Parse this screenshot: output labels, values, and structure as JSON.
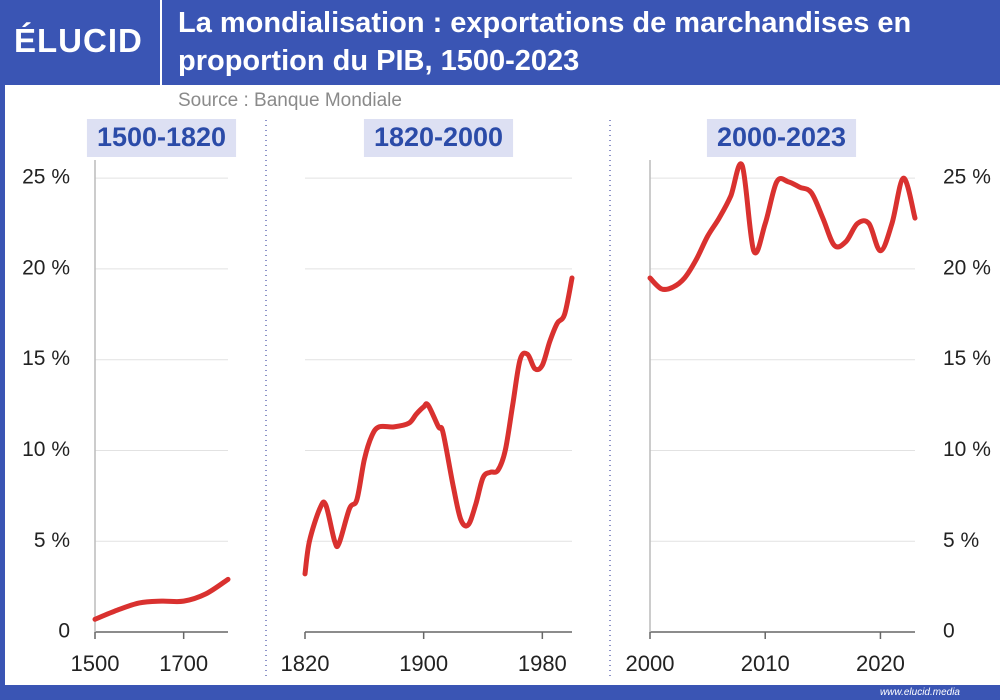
{
  "header": {
    "logo": "ÉLUCID",
    "title": "La mondialisation : exportations de marchandises en proportion du PIB, 1500-2023",
    "source": "Source : Banque Mondiale"
  },
  "footer": {
    "url": "www.elucid.media"
  },
  "chart_data": [
    {
      "type": "line",
      "title": "1500-1820",
      "color": "#d9312f",
      "grid": true,
      "yaxis": "left",
      "x": [
        1500,
        1550,
        1600,
        1650,
        1700,
        1750,
        1800
      ],
      "values": [
        0.7,
        1.2,
        1.6,
        1.7,
        1.7,
        2.1,
        2.9
      ],
      "xlim": [
        1500,
        1800
      ],
      "xticks": [
        1500,
        1700
      ],
      "ylim": [
        0,
        26
      ],
      "yticks": [
        0,
        {
          "value": 5,
          "label": "5 %"
        },
        {
          "value": 10,
          "label": "10 %"
        },
        {
          "value": 15,
          "label": "15 %"
        },
        {
          "value": 20,
          "label": "20 %"
        },
        {
          "value": 25,
          "label": "25 %"
        }
      ]
    },
    {
      "type": "line",
      "title": "1820-2000",
      "color": "#d9312f",
      "grid": true,
      "x": [
        1820,
        1823,
        1830,
        1834,
        1840,
        1843,
        1850,
        1855,
        1860,
        1865,
        1870,
        1880,
        1890,
        1895,
        1900,
        1903,
        1910,
        1913,
        1920,
        1925,
        1930,
        1935,
        1940,
        1945,
        1950,
        1955,
        1960,
        1965,
        1970,
        1975,
        1980,
        1985,
        1990,
        1995,
        2000
      ],
      "values": [
        3.2,
        5,
        6.8,
        7,
        5,
        4.9,
        6.8,
        7.3,
        9.5,
        10.8,
        11.3,
        11.3,
        11.5,
        12,
        12.4,
        12.5,
        11.3,
        11,
        8,
        6.2,
        5.9,
        7,
        8.5,
        8.8,
        8.9,
        10,
        12.5,
        15,
        15.3,
        14.5,
        14.7,
        16,
        17,
        17.5,
        19.5
      ],
      "xlim": [
        1820,
        2000
      ],
      "xticks": [
        1820,
        1900,
        1980
      ],
      "ylim": [
        0,
        26
      ]
    },
    {
      "type": "line",
      "title": "2000-2023",
      "color": "#d9312f",
      "grid": true,
      "yaxis": "right",
      "x": [
        2000,
        2001,
        2002,
        2003,
        2004,
        2005,
        2006,
        2007,
        2008,
        2009,
        2010,
        2011,
        2012,
        2013,
        2014,
        2015,
        2016,
        2017,
        2018,
        2019,
        2020,
        2021,
        2022,
        2023
      ],
      "values": [
        19.5,
        18.9,
        19,
        19.5,
        20.5,
        21.8,
        22.8,
        24,
        25.7,
        21,
        22.5,
        24.8,
        24.8,
        24.5,
        24.2,
        22.8,
        21.3,
        21.5,
        22.5,
        22.5,
        21,
        22.5,
        25,
        22.8
      ],
      "xlim": [
        2000,
        2023
      ],
      "xticks": [
        2000,
        2010,
        2020
      ],
      "ylim": [
        0,
        26
      ],
      "yticks": [
        0,
        {
          "value": 5,
          "label": "5 %"
        },
        {
          "value": 10,
          "label": "10 %"
        },
        {
          "value": 15,
          "label": "15 %"
        },
        {
          "value": 20,
          "label": "20 %"
        },
        {
          "value": 25,
          "label": "25 %"
        }
      ]
    }
  ]
}
